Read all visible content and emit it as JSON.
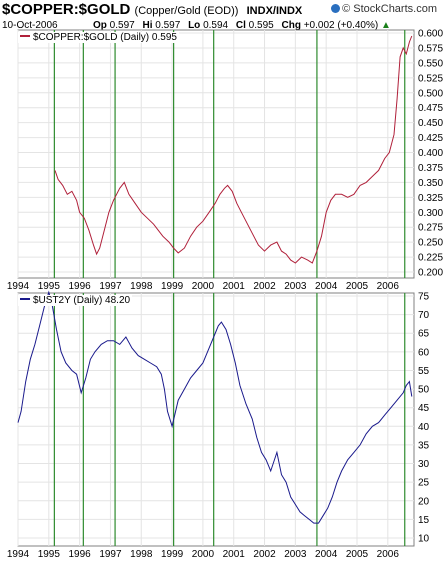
{
  "header": {
    "symbol": "$COPPER:$GOLD",
    "description": "(Copper/Gold (EOD))",
    "exchange": "INDX/INDX",
    "date": "10-Oct-2006",
    "open_label": "Op",
    "open": "0.597",
    "high_label": "Hi",
    "high": "0.597",
    "low_label": "Lo",
    "low": "0.594",
    "close_label": "Cl",
    "close": "0.595",
    "change_label": "Chg",
    "change": "+0.002 (+0.40%)",
    "up_arrow": "up-arrow-icon",
    "brand": "© StockCharts.com"
  },
  "chart_data": [
    {
      "type": "line",
      "legend": "$COPPER:$GOLD (Daily) 0.595",
      "color": "#b0203a",
      "ylim": [
        0.2,
        0.6
      ],
      "y_ticks": [
        "0.600",
        "0.575",
        "0.550",
        "0.525",
        "0.500",
        "0.475",
        "0.450",
        "0.425",
        "0.400",
        "0.375",
        "0.350",
        "0.325",
        "0.300",
        "0.275",
        "0.250",
        "0.225",
        "0.200"
      ],
      "x_ticks": [
        "1994",
        "1995",
        "1996",
        "1997",
        "1998",
        "1999",
        "2000",
        "2001",
        "2002",
        "2003",
        "2004",
        "2005",
        "2006"
      ],
      "xlim": [
        1994.0,
        2006.85
      ],
      "series": [
        {
          "x": [
            1995.2,
            1995.3,
            1995.45,
            1995.6,
            1995.75,
            1995.9,
            1996.0,
            1996.15,
            1996.3,
            1996.45,
            1996.55,
            1996.65,
            1996.8,
            1996.95,
            1997.1,
            1997.3,
            1997.45,
            1997.6,
            1997.8,
            1998.0,
            1998.2,
            1998.4,
            1998.55,
            1998.7,
            1998.9,
            1999.05,
            1999.2,
            1999.4,
            1999.6,
            1999.8,
            2000.0,
            2000.2,
            2000.4,
            2000.55,
            2000.7,
            2000.8,
            2000.95,
            2001.1,
            2001.25,
            2001.4,
            2001.6,
            2001.8,
            2002.0,
            2002.2,
            2002.4,
            2002.55,
            2002.7,
            2002.85,
            2003.0,
            2003.2,
            2003.4,
            2003.55,
            2003.7,
            2003.85,
            2004.0,
            2004.15,
            2004.3,
            2004.5,
            2004.7,
            2004.9,
            2005.1,
            2005.3,
            2005.5,
            2005.7,
            2005.9,
            2006.05,
            2006.2,
            2006.3,
            2006.4,
            2006.5,
            2006.6,
            2006.7,
            2006.78
          ],
          "y": [
            0.37,
            0.355,
            0.345,
            0.33,
            0.335,
            0.32,
            0.3,
            0.29,
            0.27,
            0.245,
            0.23,
            0.24,
            0.27,
            0.3,
            0.32,
            0.34,
            0.35,
            0.33,
            0.315,
            0.3,
            0.29,
            0.28,
            0.27,
            0.26,
            0.25,
            0.24,
            0.232,
            0.24,
            0.26,
            0.275,
            0.285,
            0.3,
            0.315,
            0.33,
            0.34,
            0.345,
            0.335,
            0.315,
            0.3,
            0.285,
            0.265,
            0.245,
            0.235,
            0.245,
            0.25,
            0.235,
            0.23,
            0.22,
            0.215,
            0.225,
            0.22,
            0.215,
            0.235,
            0.26,
            0.3,
            0.32,
            0.33,
            0.33,
            0.325,
            0.33,
            0.345,
            0.35,
            0.36,
            0.37,
            0.39,
            0.4,
            0.43,
            0.49,
            0.56,
            0.575,
            0.565,
            0.585,
            0.595
          ]
        }
      ]
    },
    {
      "type": "line",
      "legend": "$UST2Y (Daily) 48.20",
      "color": "#1a1a8c",
      "ylim": [
        10,
        75
      ],
      "y_ticks": [
        "75",
        "70",
        "65",
        "60",
        "55",
        "50",
        "45",
        "40",
        "35",
        "30",
        "25",
        "20",
        "15",
        "10"
      ],
      "x_ticks": [
        "1994",
        "1995",
        "1996",
        "1997",
        "1998",
        "1999",
        "2000",
        "2001",
        "2002",
        "2003",
        "2004",
        "2005",
        "2006"
      ],
      "xlim": [
        1994.0,
        2006.85
      ],
      "series": [
        {
          "x": [
            1994.0,
            1994.1,
            1994.25,
            1994.4,
            1994.55,
            1994.7,
            1994.85,
            1995.0,
            1995.1,
            1995.25,
            1995.4,
            1995.55,
            1995.75,
            1995.9,
            1996.05,
            1996.2,
            1996.35,
            1996.5,
            1996.7,
            1996.9,
            1997.1,
            1997.3,
            1997.5,
            1997.7,
            1997.9,
            1998.1,
            1998.3,
            1998.5,
            1998.65,
            1998.75,
            1998.85,
            1999.0,
            1999.2,
            1999.4,
            1999.6,
            1999.8,
            2000.0,
            2000.2,
            2000.35,
            2000.5,
            2000.6,
            2000.75,
            2000.9,
            2001.05,
            2001.2,
            2001.4,
            2001.6,
            2001.75,
            2001.9,
            2002.05,
            2002.2,
            2002.4,
            2002.55,
            2002.7,
            2002.85,
            2003.0,
            2003.15,
            2003.3,
            2003.45,
            2003.6,
            2003.75,
            2003.9,
            2004.05,
            2004.2,
            2004.35,
            2004.5,
            2004.7,
            2004.9,
            2005.1,
            2005.3,
            2005.5,
            2005.7,
            2005.9,
            2006.1,
            2006.3,
            2006.5,
            2006.6,
            2006.7,
            2006.78
          ],
          "y": [
            41,
            44,
            52,
            58,
            62,
            67,
            72,
            76,
            73,
            66,
            60,
            57,
            55,
            54,
            49,
            53,
            58,
            60,
            62,
            63,
            63,
            62,
            64,
            61,
            59,
            58,
            57,
            56,
            54,
            50,
            44,
            40,
            47,
            50,
            53,
            55,
            57,
            61,
            64,
            67,
            68,
            66,
            62,
            57,
            51,
            46,
            42,
            37,
            33,
            31,
            28,
            33,
            27,
            25,
            21,
            19,
            17,
            16,
            15,
            14,
            14,
            16,
            18,
            21,
            25,
            28,
            31,
            33,
            35,
            38,
            40,
            41,
            43,
            45,
            47,
            49,
            51,
            52,
            48
          ]
        }
      ]
    }
  ],
  "event_lines": {
    "color": "#2e8b2e",
    "dates": [
      1995.18,
      1996.12,
      1997.15,
      1999.05,
      2000.35,
      2003.7,
      2006.55
    ]
  }
}
